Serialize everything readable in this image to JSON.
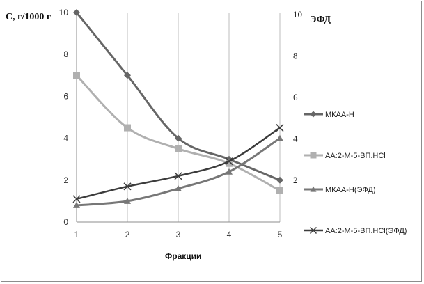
{
  "chart_data": {
    "type": "line",
    "x": [
      1,
      2,
      3,
      4,
      5
    ],
    "xlabel": "Фракции",
    "ylabel": "С, г/1000 г",
    "ylim": [
      0,
      10
    ],
    "yticks": [
      "0",
      "2",
      "4",
      "6",
      "8",
      "10"
    ],
    "y2label": "ЭФД",
    "y2ticks": [
      "2",
      "4",
      "6",
      "8",
      "10"
    ],
    "grid": "vertical",
    "legend_position": "right",
    "series": [
      {
        "name": "МКАА-Н",
        "values": [
          10,
          7,
          4,
          3,
          2
        ],
        "color": "#666666",
        "marker": "diamond",
        "width": 3
      },
      {
        "name": "АА:2-М-5-ВП.HCl",
        "values": [
          7,
          4.5,
          3.5,
          2.8,
          1.5
        ],
        "color": "#b0b0b0",
        "marker": "square",
        "width": 3
      },
      {
        "name": "МКАА-Н(ЭФД)",
        "values": [
          0.8,
          1.0,
          1.6,
          2.4,
          4.0
        ],
        "color": "#777777",
        "marker": "triangle",
        "width": 3
      },
      {
        "name": "АА:2-М-5-ВП.HCl(ЭФД)",
        "values": [
          1.1,
          1.7,
          2.2,
          2.9,
          4.5
        ],
        "color": "#3c3c3c",
        "marker": "x",
        "width": 2.5
      }
    ]
  }
}
